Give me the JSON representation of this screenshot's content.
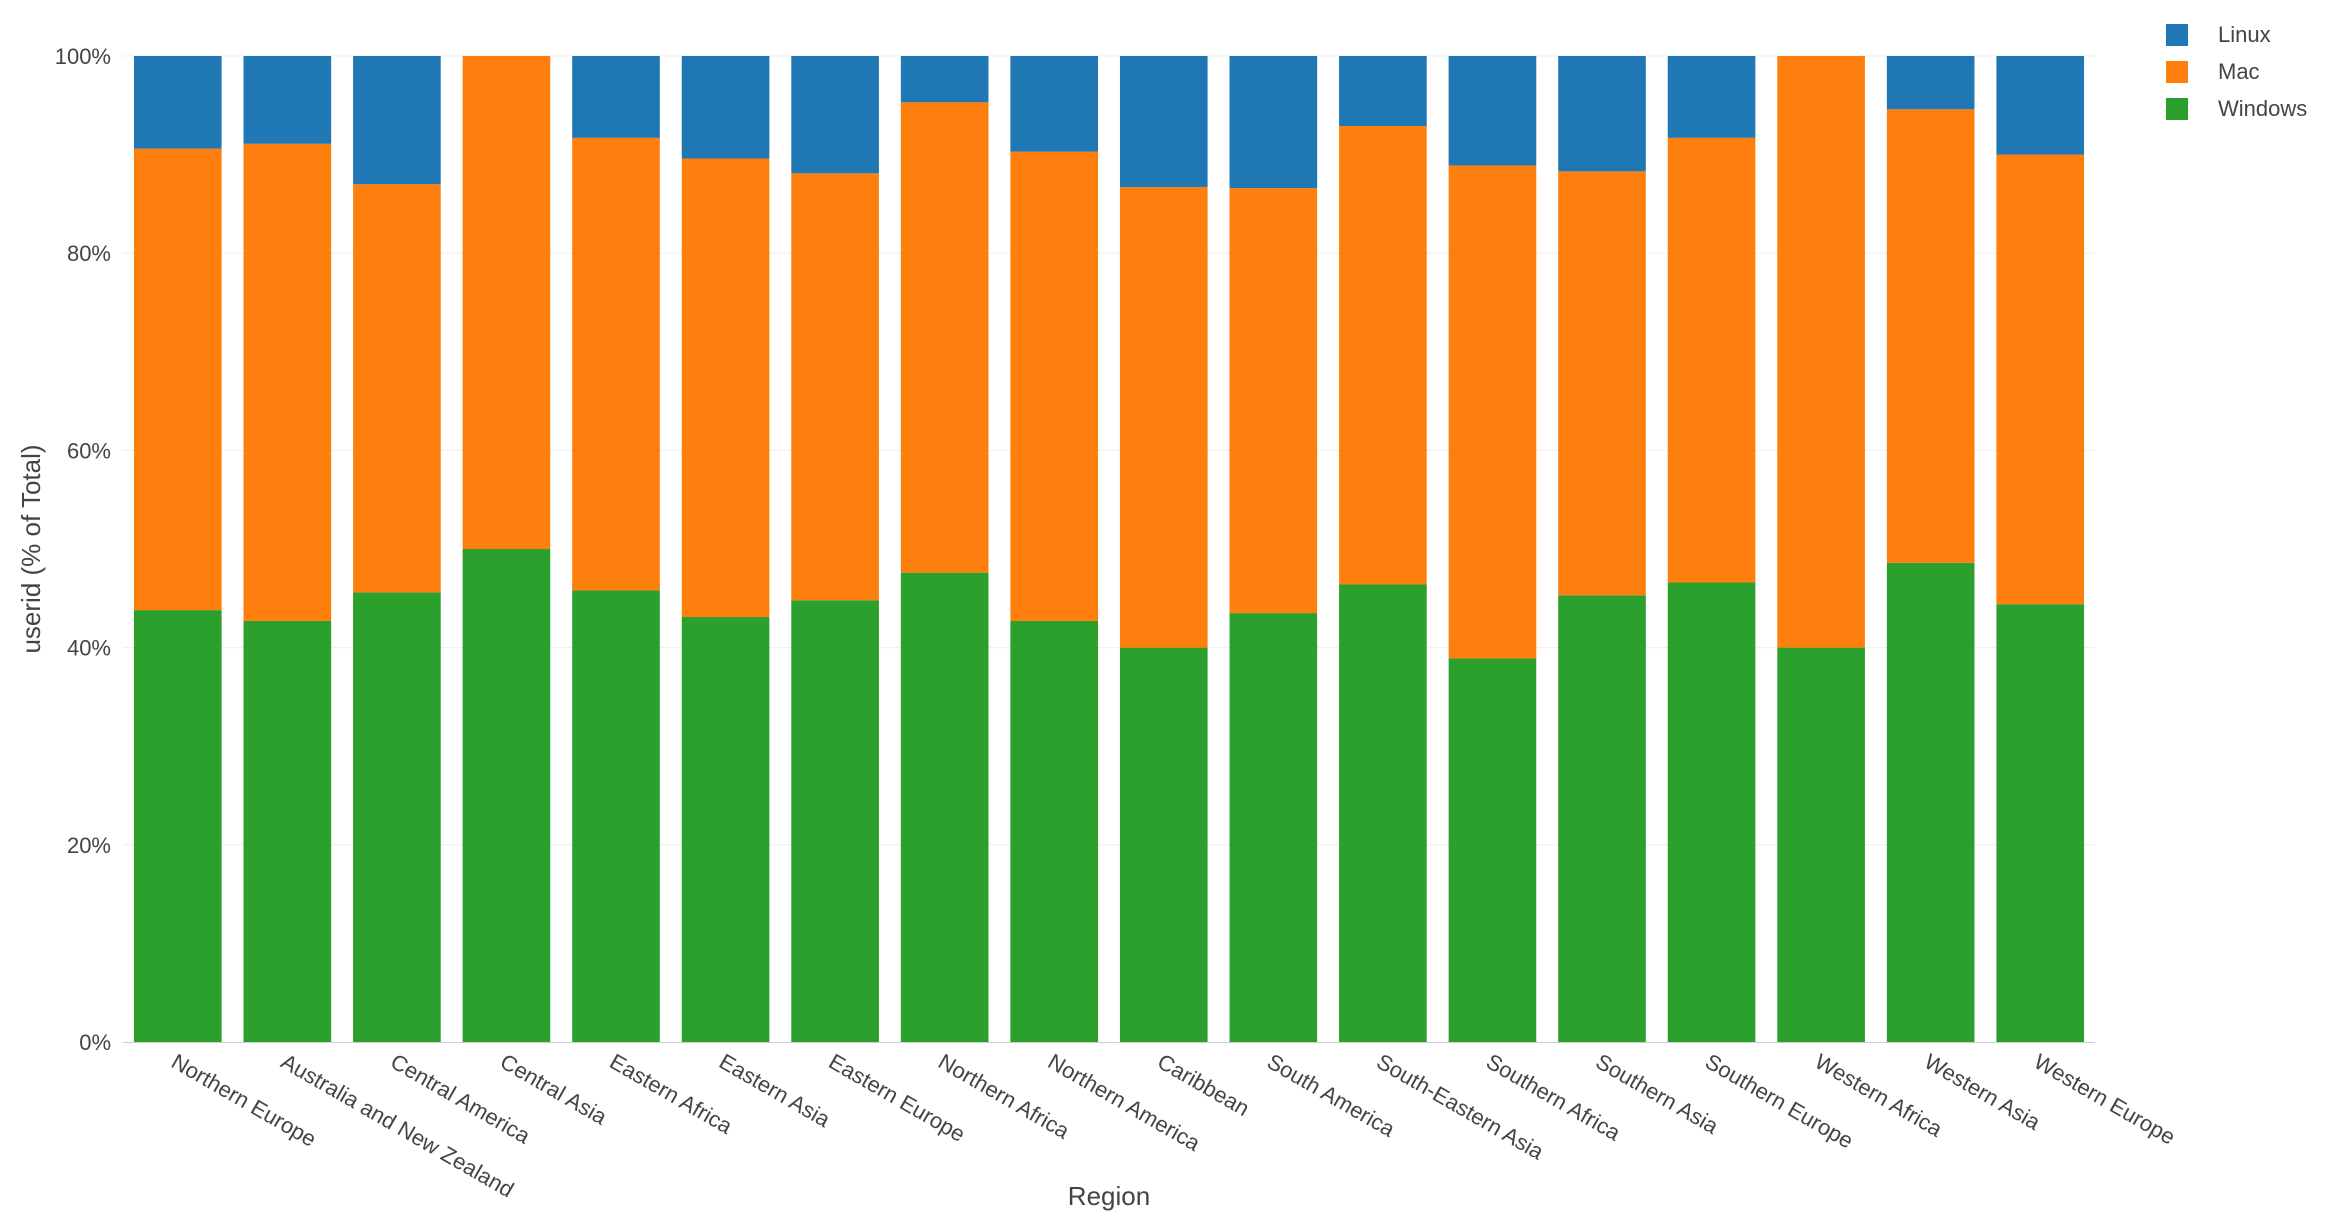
{
  "chart_data": {
    "type": "bar",
    "stacked": true,
    "normalized": true,
    "xlabel": "Region",
    "ylabel": "userid (% of Total)",
    "ylim": [
      0,
      100
    ],
    "yticks": [
      "0%",
      "20%",
      "40%",
      "60%",
      "80%",
      "100%"
    ],
    "ytick_values": [
      0,
      20,
      40,
      60,
      80,
      100
    ],
    "grid": true,
    "legend_position": "top-right",
    "categories": [
      "Northern Europe",
      "Australia and New Zealand",
      "Central America",
      "Central Asia",
      "Eastern Africa",
      "Eastern Asia",
      "Eastern Europe",
      "Northern Africa",
      "Northern America",
      "Caribbean",
      "South America",
      "South-Eastern Asia",
      "Southern Africa",
      "Southern Asia",
      "Southern Europe",
      "Western Africa",
      "Western Asia",
      "Western Europe"
    ],
    "series": [
      {
        "name": "Windows",
        "color": "#2ca02c",
        "values": [
          43.8,
          42.7,
          45.6,
          50.0,
          45.8,
          43.1,
          44.8,
          47.6,
          42.7,
          40.0,
          43.5,
          46.4,
          38.9,
          45.3,
          46.6,
          40.0,
          48.6,
          44.4
        ]
      },
      {
        "name": "Mac",
        "color": "#ff7f0e",
        "values": [
          46.8,
          48.4,
          41.4,
          50.0,
          45.9,
          46.5,
          43.3,
          47.7,
          47.6,
          46.7,
          43.1,
          46.5,
          50.0,
          43.0,
          45.1,
          60.0,
          46.0,
          45.6
        ]
      },
      {
        "name": "Linux",
        "color": "#1f77b4",
        "values": [
          9.4,
          8.9,
          13.0,
          0.0,
          8.3,
          10.4,
          11.9,
          4.7,
          9.7,
          13.3,
          13.4,
          7.1,
          11.1,
          11.7,
          8.3,
          0.0,
          5.4,
          10.0
        ]
      }
    ],
    "legend_order": [
      "Linux",
      "Mac",
      "Windows"
    ]
  }
}
